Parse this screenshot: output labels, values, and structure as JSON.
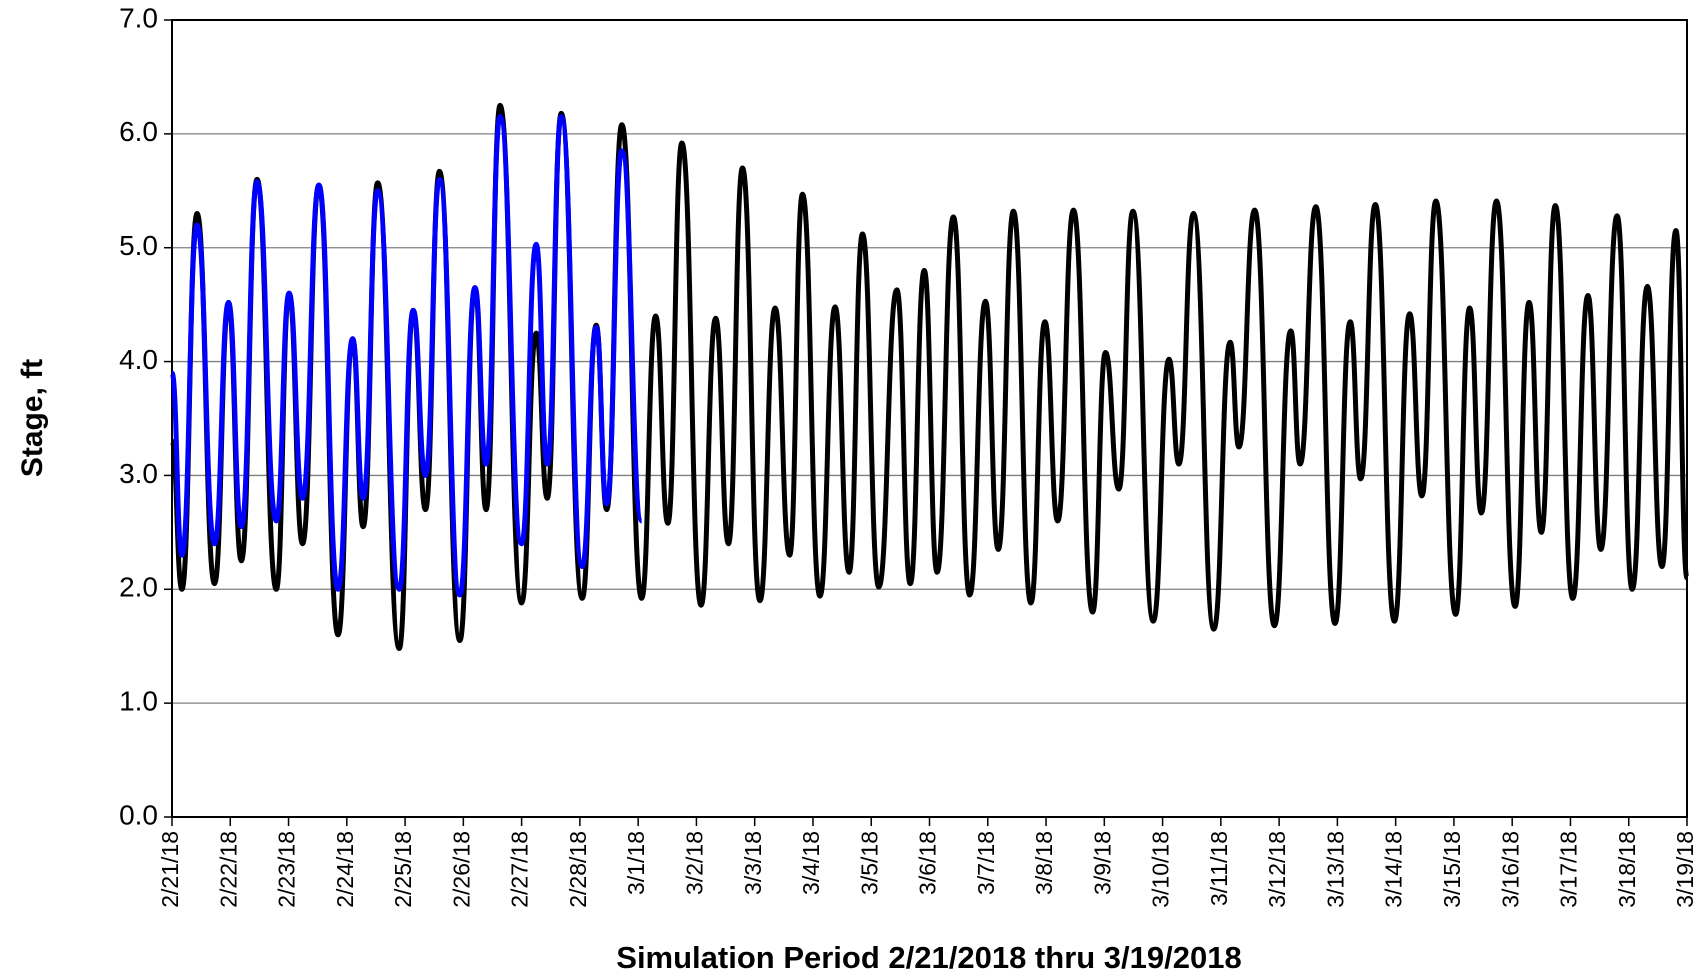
{
  "chart_data": {
    "type": "line",
    "x_label": "Simulation Period 2/21/2018 thru 3/19/2018",
    "y_label": "Stage, ft",
    "x": [
      0,
      0.17,
      0.43,
      0.73,
      0.97,
      1.19,
      1.46,
      1.79,
      2.01,
      2.24,
      2.52,
      2.85,
      3.1,
      3.28,
      3.53,
      3.9,
      4.14,
      4.35,
      4.59,
      4.94,
      5.2,
      5.39,
      5.63,
      6.0,
      6.25,
      6.44,
      6.68,
      7.04,
      7.28,
      7.46,
      7.72,
      8.06,
      8.3,
      8.51,
      8.75,
      9.08,
      9.33,
      9.55,
      9.79,
      10.09,
      10.35,
      10.6,
      10.82,
      11.12,
      11.38,
      11.62,
      11.85,
      12.13,
      12.44,
      12.67,
      12.91,
      13.13,
      13.41,
      13.69,
      13.96,
      14.18,
      14.44,
      14.74,
      14.98,
      15.2,
      15.47,
      15.8,
      16.02,
      16.25,
      16.49,
      16.84,
      17.11,
      17.28,
      17.53,
      17.88,
      18.16,
      18.31,
      18.58,
      18.92,
      19.2,
      19.36,
      19.63,
      19.96,
      20.22,
      20.4,
      20.65,
      20.98,
      21.24,
      21.45,
      21.69,
      22.03,
      22.27,
      22.47,
      22.73,
      23.05,
      23.29,
      23.5,
      23.74,
      24.04,
      24.3,
      24.52,
      24.8,
      25.06,
      25.32,
      25.57,
      25.81,
      26
    ],
    "series": [
      {
        "color": "#000000",
        "values": [
          3.3,
          2.0,
          5.3,
          2.05,
          4.5,
          2.25,
          5.6,
          2.0,
          4.6,
          2.4,
          5.55,
          1.6,
          4.2,
          2.55,
          5.57,
          1.48,
          4.45,
          2.7,
          5.67,
          1.55,
          4.65,
          2.7,
          6.25,
          1.88,
          4.25,
          2.8,
          6.18,
          1.92,
          4.32,
          2.7,
          6.08,
          1.92,
          4.4,
          2.58,
          5.92,
          1.86,
          4.38,
          2.4,
          5.7,
          1.9,
          4.47,
          2.3,
          5.47,
          1.94,
          4.48,
          2.15,
          5.12,
          2.02,
          4.63,
          2.05,
          4.8,
          2.15,
          5.27,
          1.95,
          4.53,
          2.35,
          5.32,
          1.88,
          4.35,
          2.6,
          5.33,
          1.8,
          4.08,
          2.88,
          5.32,
          1.72,
          4.02,
          3.1,
          5.3,
          1.65,
          4.17,
          3.25,
          5.33,
          1.68,
          4.27,
          3.1,
          5.36,
          1.7,
          4.35,
          2.97,
          5.38,
          1.72,
          4.42,
          2.82,
          5.41,
          1.78,
          4.47,
          2.67,
          5.41,
          1.85,
          4.52,
          2.5,
          5.37,
          1.92,
          4.58,
          2.35,
          5.28,
          2.0,
          4.66,
          2.2,
          5.15,
          2.1
        ]
      },
      {
        "color": "#0000ff",
        "values": [
          3.9,
          2.3,
          5.2,
          2.4,
          4.52,
          2.55,
          5.58,
          2.6,
          4.6,
          2.8,
          5.55,
          2.0,
          4.2,
          2.8,
          5.5,
          2.0,
          4.45,
          3.0,
          5.6,
          1.95,
          4.65,
          3.1,
          6.15,
          2.4,
          5.03,
          3.1,
          6.15,
          2.2,
          4.3,
          2.75,
          5.85,
          2.6,
          null,
          null,
          null,
          null,
          null,
          null,
          null,
          null,
          null,
          null,
          null,
          null,
          null,
          null,
          null,
          null,
          null,
          null,
          null,
          null,
          null,
          null,
          null,
          null,
          null,
          null,
          null,
          null,
          null,
          null,
          null,
          null,
          null,
          null,
          null,
          null,
          null,
          null,
          null,
          null,
          null,
          null,
          null,
          null,
          null,
          null,
          null,
          null,
          null,
          null,
          null,
          null,
          null,
          null,
          null,
          null,
          null,
          null,
          null,
          null,
          null,
          null,
          null,
          null,
          null,
          null,
          null,
          null,
          null,
          null
        ]
      }
    ],
    "xlim": [
      0,
      26
    ],
    "xticks": [
      {
        "value": 0,
        "label": "2/21/18"
      },
      {
        "value": 1,
        "label": "2/22/18"
      },
      {
        "value": 2,
        "label": "2/23/18"
      },
      {
        "value": 3,
        "label": "2/24/18"
      },
      {
        "value": 4,
        "label": "2/25/18"
      },
      {
        "value": 5,
        "label": "2/26/18"
      },
      {
        "value": 6,
        "label": "2/27/18"
      },
      {
        "value": 7,
        "label": "2/28/18"
      },
      {
        "value": 8,
        "label": "3/1/18"
      },
      {
        "value": 9,
        "label": "3/2/18"
      },
      {
        "value": 10,
        "label": "3/3/18"
      },
      {
        "value": 11,
        "label": "3/4/18"
      },
      {
        "value": 12,
        "label": "3/5/18"
      },
      {
        "value": 13,
        "label": "3/6/18"
      },
      {
        "value": 14,
        "label": "3/7/18"
      },
      {
        "value": 15,
        "label": "3/8/18"
      },
      {
        "value": 16,
        "label": "3/9/18"
      },
      {
        "value": 17,
        "label": "3/10/18"
      },
      {
        "value": 18,
        "label": "3/11/18"
      },
      {
        "value": 19,
        "label": "3/12/18"
      },
      {
        "value": 20,
        "label": "3/13/18"
      },
      {
        "value": 21,
        "label": "3/14/18"
      },
      {
        "value": 22,
        "label": "3/15/18"
      },
      {
        "value": 23,
        "label": "3/16/18"
      },
      {
        "value": 24,
        "label": "3/17/18"
      },
      {
        "value": 25,
        "label": "3/18/18"
      },
      {
        "value": 26,
        "label": "3/19/18"
      }
    ],
    "ylim": [
      0,
      7
    ],
    "yticks": [
      {
        "value": 0,
        "label": "0.0"
      },
      {
        "value": 1,
        "label": "1.0"
      },
      {
        "value": 2,
        "label": "2.0"
      },
      {
        "value": 3,
        "label": "3.0"
      },
      {
        "value": 4,
        "label": "4.0"
      },
      {
        "value": 5,
        "label": "5.0"
      },
      {
        "value": 6,
        "label": "6.0"
      },
      {
        "value": 7,
        "label": "7.0"
      }
    ],
    "grid": true
  }
}
